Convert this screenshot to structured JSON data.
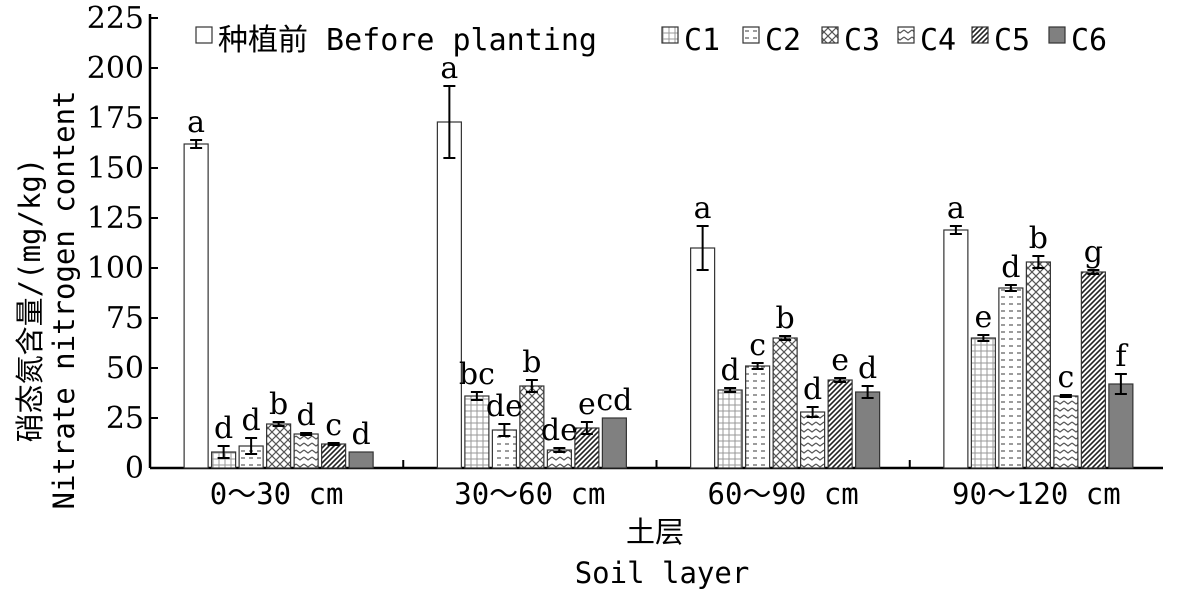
{
  "chart_data": {
    "type": "bar",
    "title": "",
    "xlabel_cn": "土层",
    "xlabel": "Soil layer",
    "ylabel_cn": "硝态氮含量/(mg/kg)",
    "ylabel": "Nitrate nitrogen content",
    "ylim": [
      0,
      225
    ],
    "yticks": [
      "0",
      "25",
      "50",
      "75",
      "100",
      "125",
      "150",
      "175",
      "200",
      "225"
    ],
    "legend_position": "top",
    "categories": [
      "0～30 cm",
      "30～60 cm",
      "60～90 cm",
      "90～120 cm"
    ],
    "series": [
      {
        "name": "种植前 Before planting",
        "pattern": "plain",
        "values": [
          162,
          173,
          110,
          119
        ],
        "errors": [
          2,
          18,
          11,
          2
        ],
        "letters": [
          "a",
          "a",
          "a",
          "a"
        ]
      },
      {
        "name": "C1",
        "pattern": "grid",
        "values": [
          8,
          36,
          39,
          65
        ],
        "errors": [
          3,
          2,
          1,
          1.5
        ],
        "letters": [
          "d",
          "bc",
          "d",
          "e"
        ]
      },
      {
        "name": "C2",
        "pattern": "dash",
        "values": [
          11,
          19,
          51,
          90
        ],
        "errors": [
          4,
          3,
          1.5,
          1.5
        ],
        "letters": [
          "d",
          "de",
          "c",
          "d"
        ]
      },
      {
        "name": "C3",
        "pattern": "crosshatch",
        "values": [
          22,
          41,
          65,
          103
        ],
        "errors": [
          1,
          3,
          1,
          3
        ],
        "letters": [
          "b",
          "b",
          "b",
          "b"
        ]
      },
      {
        "name": "C4",
        "pattern": "zigzag",
        "values": [
          17,
          9,
          28,
          36
        ],
        "errors": [
          0.5,
          1,
          2.5,
          0.5
        ],
        "letters": [
          "d",
          "de",
          "d",
          "c"
        ]
      },
      {
        "name": "C5",
        "pattern": "diagonal",
        "values": [
          12,
          20,
          44,
          98
        ],
        "errors": [
          0.5,
          3,
          1,
          1
        ],
        "letters": [
          "c",
          "e",
          "e",
          "g"
        ]
      },
      {
        "name": "C6",
        "pattern": "solid-gray",
        "values": [
          8,
          25,
          38,
          42
        ],
        "errors": [
          0,
          0,
          3,
          5
        ],
        "letters": [
          "d",
          "cd",
          "d",
          "f"
        ]
      }
    ],
    "colors": {
      "axis": "#000000",
      "bar_outline": "#333333",
      "solid_fill": "#808080",
      "pattern_ink": "#555555"
    }
  }
}
